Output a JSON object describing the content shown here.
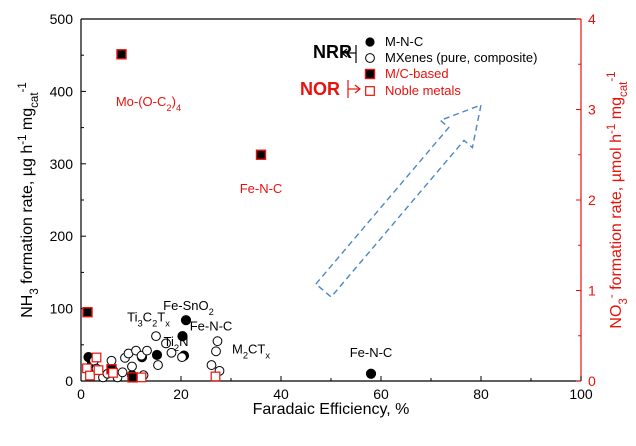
{
  "colors": {
    "nrr": "#000000",
    "nor": "#e8120c",
    "arrow": "#4a86c8",
    "axis": "#000000"
  },
  "chart_data": {
    "type": "scatter",
    "xlabel": "Faradaic Efficiency, %",
    "ylabel_left": "NH3 formation rate, µg h-1 mgcat-1",
    "ylabel_right": "NO3- formation rate, µmol h-1 mgcat-1",
    "xlim": [
      0,
      100
    ],
    "ylim_left": [
      0,
      500
    ],
    "ylim_right": [
      0,
      4
    ],
    "x_ticks": [
      "0",
      "20",
      "40",
      "60",
      "80",
      "100"
    ],
    "y_ticks_left": [
      "0",
      "100",
      "200",
      "300",
      "400",
      "500"
    ],
    "y_ticks_right": [
      "0",
      "1",
      "2",
      "3",
      "4"
    ],
    "grid": false,
    "legend_position": "top-right",
    "legend": {
      "nrr_label": "NRR",
      "nor_label": "NOR",
      "entries": [
        {
          "label": "M-N-C",
          "marker": "filled-circle",
          "group": "NRR"
        },
        {
          "label": "MXenes (pure, composite)",
          "marker": "open-circle",
          "group": "NRR"
        },
        {
          "label": "M/C-based",
          "marker": "filled-square",
          "group": "NOR"
        },
        {
          "label": "Noble metals",
          "marker": "open-square",
          "group": "NOR"
        }
      ]
    },
    "series": [
      {
        "name": "M-N-C",
        "axis": "left",
        "marker": "filled-circle",
        "points": [
          [
            1.5,
            33
          ],
          [
            2.2,
            25
          ],
          [
            6.2,
            17
          ],
          [
            10.2,
            8
          ],
          [
            12.2,
            33
          ],
          [
            15.2,
            36
          ],
          [
            20.3,
            62
          ],
          [
            21,
            84
          ],
          [
            20.6,
            35
          ],
          [
            58,
            10
          ]
        ]
      },
      {
        "name": "MXenes (pure, composite)",
        "axis": "left",
        "marker": "open-circle",
        "points": [
          [
            2.6,
            28
          ],
          [
            3.1,
            17
          ],
          [
            4.4,
            5
          ],
          [
            5.3,
            10
          ],
          [
            6.1,
            28
          ],
          [
            7.3,
            5
          ],
          [
            8.3,
            12
          ],
          [
            8.8,
            32
          ],
          [
            9.5,
            38
          ],
          [
            10.2,
            20
          ],
          [
            11,
            42
          ],
          [
            12.1,
            35
          ],
          [
            13.2,
            42
          ],
          [
            15,
            62
          ],
          [
            15.4,
            22
          ],
          [
            17,
            52
          ],
          [
            18.1,
            39
          ],
          [
            20.2,
            33
          ],
          [
            26.1,
            22
          ],
          [
            27,
            41
          ],
          [
            27.3,
            55
          ],
          [
            27.7,
            14
          ],
          [
            12.5,
            8
          ]
        ]
      },
      {
        "name": "M/C-based",
        "axis": "right",
        "marker": "filled-square",
        "points": [
          [
            8.1,
            3.61
          ],
          [
            36,
            2.5
          ],
          [
            1.3,
            0.76
          ],
          [
            6.1,
            0.13
          ],
          [
            10.3,
            0.04
          ]
        ]
      },
      {
        "name": "Noble metals",
        "axis": "right",
        "marker": "open-square",
        "points": [
          [
            1.2,
            0.14
          ],
          [
            1.8,
            0.06
          ],
          [
            3.1,
            0.26
          ],
          [
            3.5,
            0.12
          ],
          [
            6.4,
            0.09
          ],
          [
            12.1,
            0.04
          ],
          [
            26.9,
            0.05
          ]
        ]
      }
    ],
    "annotations": [
      {
        "text": "Mo-(O-C2)4",
        "x": 13.5,
        "y": 380,
        "color": "nor"
      },
      {
        "text": "Fe-N-C",
        "x": 36,
        "y": 260,
        "color": "nor"
      },
      {
        "text": "Fe-SnO2",
        "x": 21.5,
        "y": 98,
        "color": "nrr"
      },
      {
        "text": "Ti3C2Tx",
        "x": 13.5,
        "y": 82,
        "color": "nrr"
      },
      {
        "text": "Fe-N-C",
        "x": 26,
        "y": 70,
        "color": "nrr"
      },
      {
        "text": "Ti2N",
        "x": 19,
        "y": 48,
        "color": "nrr"
      },
      {
        "text": "M2CTx",
        "x": 34,
        "y": 38,
        "color": "nrr"
      },
      {
        "text": "Fe-N-C",
        "x": 58,
        "y": 33,
        "color": "nrr"
      }
    ],
    "trend_arrow": {
      "from": [
        48.5,
        1
      ],
      "to": [
        80,
        3.05
      ]
    }
  }
}
